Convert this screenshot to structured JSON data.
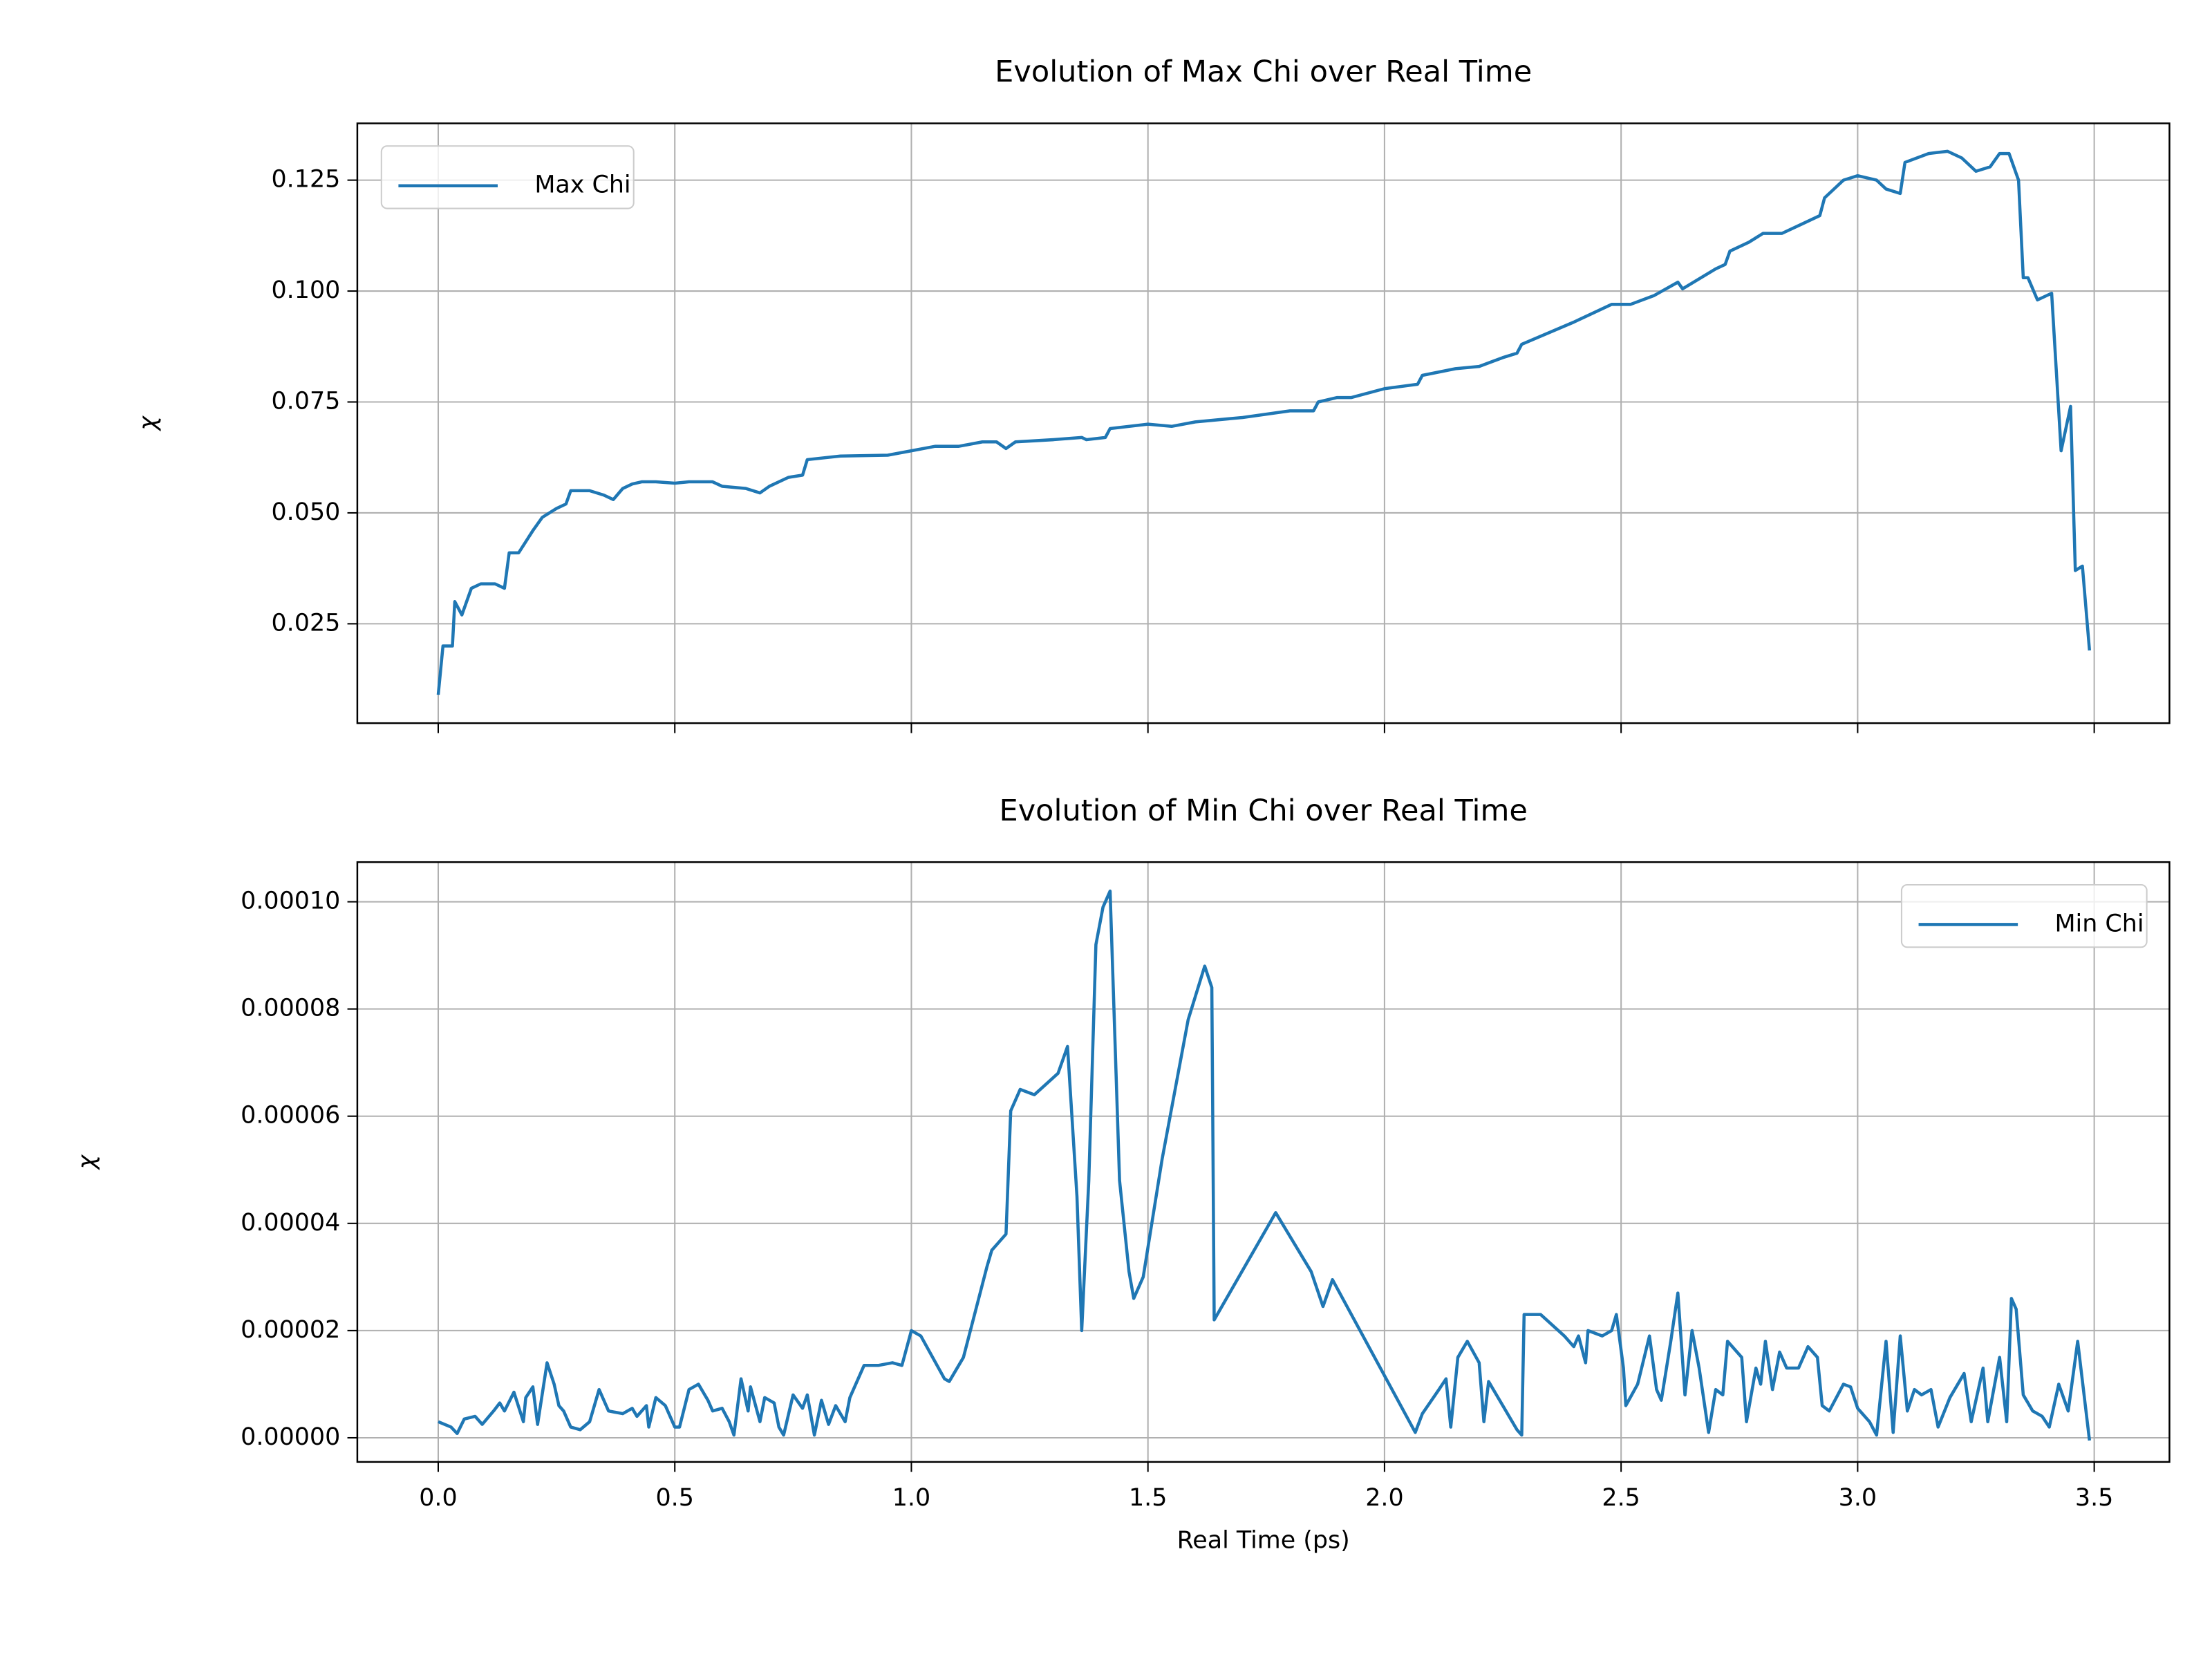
{
  "chart_data": [
    {
      "type": "line",
      "title": "Evolution of Max Chi over Real Time",
      "y_label": "χ",
      "xlim": [
        -0.171,
        3.659
      ],
      "ylim": [
        0.0026,
        0.1378
      ],
      "yticks": [
        0.025,
        {
          "value": 0.05,
          "label": "0.050"
        },
        0.075,
        {
          "value": 0.1,
          "label": "0.100"
        },
        0.125
      ],
      "grid": true,
      "legend": "upper left",
      "x": [
        0.0,
        0.01,
        0.03,
        0.035,
        0.05,
        0.07,
        0.09,
        0.12,
        0.14,
        0.15,
        0.17,
        0.2,
        0.22,
        0.25,
        0.27,
        0.28,
        0.32,
        0.35,
        0.37,
        0.39,
        0.41,
        0.43,
        0.46,
        0.5,
        0.53,
        0.58,
        0.6,
        0.65,
        0.68,
        0.7,
        0.74,
        0.77,
        0.78,
        0.85,
        0.95,
        1.0,
        1.05,
        1.1,
        1.15,
        1.18,
        1.2,
        1.22,
        1.3,
        1.36,
        1.37,
        1.41,
        1.42,
        1.5,
        1.55,
        1.6,
        1.7,
        1.8,
        1.85,
        1.86,
        1.9,
        1.93,
        2.0,
        2.07,
        2.08,
        2.15,
        2.2,
        2.25,
        2.28,
        2.29,
        2.4,
        2.48,
        2.52,
        2.57,
        2.62,
        2.63,
        2.7,
        2.72,
        2.73,
        2.77,
        2.8,
        2.84,
        2.88,
        2.92,
        2.93,
        2.97,
        3.0,
        3.04,
        3.06,
        3.09,
        3.1,
        3.15,
        3.19,
        3.22,
        3.25,
        3.28,
        3.3,
        3.32,
        3.34,
        3.35,
        3.36,
        3.38,
        3.41,
        3.43,
        3.45,
        3.46,
        3.475,
        3.49
      ],
      "series": [
        {
          "name": "Max Chi",
          "color": "#1f77b4",
          "values": [
            0.009,
            0.02,
            0.02,
            0.03,
            0.027,
            0.033,
            0.034,
            0.034,
            0.033,
            0.041,
            0.041,
            0.046,
            0.049,
            0.051,
            0.052,
            0.055,
            0.055,
            0.054,
            0.053,
            0.0555,
            0.0565,
            0.057,
            0.057,
            0.0567,
            0.057,
            0.057,
            0.056,
            0.0555,
            0.0545,
            0.056,
            0.058,
            0.0585,
            0.062,
            0.0628,
            0.063,
            0.064,
            0.065,
            0.065,
            0.066,
            0.066,
            0.0645,
            0.066,
            0.0665,
            0.067,
            0.0665,
            0.067,
            0.069,
            0.07,
            0.0695,
            0.0705,
            0.0715,
            0.073,
            0.073,
            0.075,
            0.076,
            0.076,
            0.078,
            0.079,
            0.081,
            0.0825,
            0.083,
            0.085,
            0.086,
            0.088,
            0.093,
            0.097,
            0.097,
            0.099,
            0.102,
            0.1005,
            0.105,
            0.106,
            0.109,
            0.111,
            0.113,
            0.113,
            0.115,
            0.117,
            0.121,
            0.125,
            0.126,
            0.125,
            0.123,
            0.122,
            0.129,
            0.131,
            0.1315,
            0.13,
            0.127,
            0.128,
            0.131,
            0.131,
            0.125,
            0.103,
            0.103,
            0.098,
            0.0995,
            0.064,
            0.074,
            0.037,
            0.038,
            0.019
          ]
        }
      ]
    },
    {
      "type": "line",
      "title": "Evolution of Min Chi over Real Time",
      "y_label": "χ",
      "x_label": "Real Time (ps)",
      "xlim": [
        -0.171,
        3.659
      ],
      "ylim": [
        -4.5e-06,
        0.0001074
      ],
      "xticks": [
        {
          "value": 0,
          "label": "0.0"
        },
        0.5,
        {
          "value": 1,
          "label": "1.0"
        },
        1.5,
        {
          "value": 2,
          "label": "2.0"
        },
        2.5,
        {
          "value": 3,
          "label": "3.0"
        },
        3.5
      ],
      "yticks": [
        {
          "value": 0,
          "label": "0.00000"
        },
        {
          "value": 2e-05,
          "label": "0.00002"
        },
        {
          "value": 4e-05,
          "label": "0.00004"
        },
        {
          "value": 6e-05,
          "label": "0.00006"
        },
        {
          "value": 8e-05,
          "label": "0.00008"
        },
        {
          "value": 0.0001,
          "label": "0.00010"
        }
      ],
      "grid": true,
      "legend": "upper right",
      "x": [
        0.0,
        0.027,
        0.04,
        0.055,
        0.078,
        0.093,
        0.117,
        0.13,
        0.14,
        0.16,
        0.18,
        0.185,
        0.2,
        0.21,
        0.23,
        0.245,
        0.255,
        0.265,
        0.28,
        0.3,
        0.32,
        0.34,
        0.36,
        0.39,
        0.41,
        0.42,
        0.44,
        0.445,
        0.46,
        0.48,
        0.5,
        0.51,
        0.53,
        0.55,
        0.57,
        0.58,
        0.6,
        0.615,
        0.625,
        0.64,
        0.655,
        0.66,
        0.68,
        0.69,
        0.71,
        0.72,
        0.73,
        0.75,
        0.77,
        0.78,
        0.795,
        0.81,
        0.825,
        0.84,
        0.86,
        0.87,
        0.9,
        0.93,
        0.96,
        0.98,
        1.0,
        1.02,
        1.07,
        1.08,
        1.11,
        1.16,
        1.17,
        1.2,
        1.21,
        1.23,
        1.26,
        1.31,
        1.33,
        1.35,
        1.36,
        1.375,
        1.39,
        1.405,
        1.42,
        1.44,
        1.46,
        1.47,
        1.49,
        1.53,
        1.585,
        1.62,
        1.635,
        1.64,
        1.77,
        1.845,
        1.87,
        1.89,
        2.065,
        2.08,
        2.115,
        2.13,
        2.14,
        2.155,
        2.175,
        2.2,
        2.21,
        2.22,
        2.28,
        2.29,
        2.295,
        2.33,
        2.38,
        2.4,
        2.41,
        2.425,
        2.43,
        2.46,
        2.48,
        2.49,
        2.505,
        2.51,
        2.535,
        2.56,
        2.575,
        2.585,
        2.605,
        2.62,
        2.635,
        2.65,
        2.665,
        2.685,
        2.7,
        2.715,
        2.725,
        2.755,
        2.765,
        2.785,
        2.795,
        2.805,
        2.82,
        2.835,
        2.85,
        2.875,
        2.895,
        2.915,
        2.925,
        2.94,
        2.97,
        2.985,
        3.0,
        3.025,
        3.04,
        3.06,
        3.075,
        3.09,
        3.105,
        3.12,
        3.135,
        3.155,
        3.17,
        3.195,
        3.225,
        3.24,
        3.265,
        3.275,
        3.3,
        3.315,
        3.325,
        3.335,
        3.35,
        3.37,
        3.39,
        3.405,
        3.425,
        3.445,
        3.465,
        3.49
      ],
      "series": [
        {
          "name": "Min Chi",
          "color": "#1f77b4",
          "values": [
            3e-06,
            2e-06,
            8e-07,
            3.5e-06,
            4e-06,
            2.5e-06,
            5e-06,
            6.5e-06,
            5e-06,
            8.5e-06,
            3e-06,
            7.5e-06,
            9.5e-06,
            2.5e-06,
            1.4e-05,
            1e-05,
            6e-06,
            5e-06,
            2e-06,
            1.5e-06,
            3e-06,
            9e-06,
            5e-06,
            4.5e-06,
            5.5e-06,
            4e-06,
            6e-06,
            2e-06,
            7.5e-06,
            6e-06,
            2e-06,
            2e-06,
            9e-06,
            1e-05,
            7e-06,
            5e-06,
            5.5e-06,
            3e-06,
            5e-07,
            1.1e-05,
            5e-06,
            9.5e-06,
            3e-06,
            7.5e-06,
            6.5e-06,
            2e-06,
            5e-07,
            8e-06,
            5.5e-06,
            8e-06,
            5e-07,
            7e-06,
            2.5e-06,
            6e-06,
            3e-06,
            7.5e-06,
            1.35e-05,
            1.35e-05,
            1.4e-05,
            1.35e-05,
            2e-05,
            1.9e-05,
            1.1e-05,
            1.05e-05,
            1.5e-05,
            3.2e-05,
            3.5e-05,
            3.8e-05,
            6.1e-05,
            6.5e-05,
            6.4e-05,
            6.8e-05,
            7.3e-05,
            4.5e-05,
            2e-05,
            4.8e-05,
            9.2e-05,
            9.9e-05,
            0.000102,
            4.8e-05,
            3.1e-05,
            2.6e-05,
            3e-05,
            5.2e-05,
            7.8e-05,
            8.8e-05,
            8.4e-05,
            2.2e-05,
            4.2e-05,
            3.1e-05,
            2.45e-05,
            2.95e-05,
            1e-06,
            4.5e-06,
            9e-06,
            1.1e-05,
            2e-06,
            1.5e-05,
            1.8e-05,
            1.4e-05,
            3e-06,
            1.05e-05,
            1.5e-06,
            5e-07,
            2.3e-05,
            2.3e-05,
            1.9e-05,
            1.7e-05,
            1.9e-05,
            1.4e-05,
            2e-05,
            1.9e-05,
            2e-05,
            2.3e-05,
            1.3e-05,
            6e-06,
            1e-05,
            1.9e-05,
            9e-06,
            7e-06,
            1.8e-05,
            2.7e-05,
            8e-06,
            2e-05,
            1.3e-05,
            1e-06,
            9e-06,
            8e-06,
            1.8e-05,
            1.5e-05,
            3e-06,
            1.3e-05,
            1e-05,
            1.8e-05,
            9e-06,
            1.6e-05,
            1.3e-05,
            1.3e-05,
            1.7e-05,
            1.5e-05,
            6e-06,
            5e-06,
            1e-05,
            9.5e-06,
            5.5e-06,
            3e-06,
            5e-07,
            1.8e-05,
            1e-06,
            1.9e-05,
            5e-06,
            9e-06,
            8e-06,
            9e-06,
            2e-06,
            7.5e-06,
            1.2e-05,
            3e-06,
            1.3e-05,
            3e-06,
            1.5e-05,
            3e-06,
            2.6e-05,
            2.4e-05,
            8e-06,
            5e-06,
            4e-06,
            2e-06,
            1e-05,
            5e-06,
            1.8e-05,
            -5e-07
          ]
        }
      ]
    }
  ]
}
